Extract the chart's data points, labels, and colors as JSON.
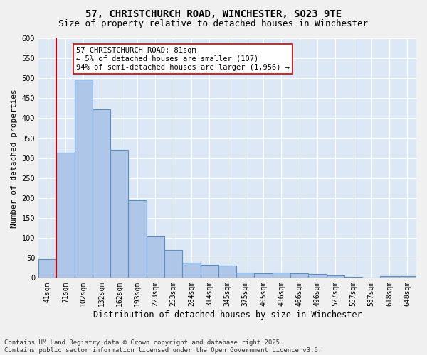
{
  "title": "57, CHRISTCHURCH ROAD, WINCHESTER, SO23 9TE",
  "subtitle": "Size of property relative to detached houses in Winchester",
  "xlabel": "Distribution of detached houses by size in Winchester",
  "ylabel": "Number of detached properties",
  "categories": [
    "41sqm",
    "71sqm",
    "102sqm",
    "132sqm",
    "162sqm",
    "193sqm",
    "223sqm",
    "253sqm",
    "284sqm",
    "314sqm",
    "345sqm",
    "375sqm",
    "405sqm",
    "436sqm",
    "466sqm",
    "496sqm",
    "527sqm",
    "557sqm",
    "587sqm",
    "618sqm",
    "648sqm"
  ],
  "values": [
    46,
    313,
    497,
    423,
    320,
    195,
    104,
    70,
    38,
    33,
    30,
    13,
    12,
    13,
    12,
    10,
    6,
    3,
    0,
    4,
    4
  ],
  "bar_color": "#aec6e8",
  "bar_edge_color": "#5a8fc2",
  "bar_edge_width": 0.8,
  "vline_x_index": 1,
  "vline_color": "#cc0000",
  "annotation_text": "57 CHRISTCHURCH ROAD: 81sqm\n← 5% of detached houses are smaller (107)\n94% of semi-detached houses are larger (1,956) →",
  "annotation_box_color": "#ffffff",
  "annotation_box_edge": "#cc0000",
  "ylim": [
    0,
    600
  ],
  "yticks": [
    0,
    50,
    100,
    150,
    200,
    250,
    300,
    350,
    400,
    450,
    500,
    550,
    600
  ],
  "plot_bg_color": "#dce8f5",
  "fig_bg_color": "#f0f0f0",
  "grid_color": "#ffffff",
  "footer_text": "Contains HM Land Registry data © Crown copyright and database right 2025.\nContains public sector information licensed under the Open Government Licence v3.0.",
  "title_fontsize": 10,
  "subtitle_fontsize": 9,
  "xlabel_fontsize": 8.5,
  "ylabel_fontsize": 8,
  "tick_fontsize": 7,
  "annotation_fontsize": 7.5,
  "footer_fontsize": 6.5
}
